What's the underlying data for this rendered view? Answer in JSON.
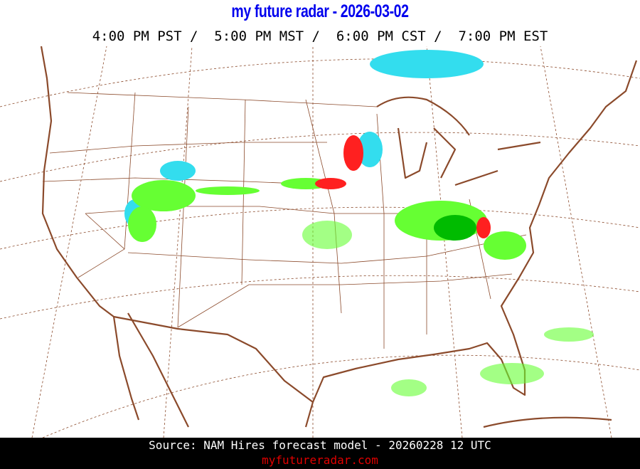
{
  "header": {
    "title": "my future radar - 2026-03-02",
    "times": "4:00 PM PST /  5:00 PM MST /  6:00 PM CST /  7:00 PM EST"
  },
  "map": {
    "region": "Continental United States",
    "colors": {
      "coastline": "#8b4a2b",
      "rain_light": "#66ff33",
      "rain_moderate": "#00bb00",
      "snow": "#33ddee",
      "mix": "#ff2020"
    }
  },
  "footer": {
    "source": "Source: NAM Hires forecast model - 20260228 12 UTC",
    "site": "myfutureradar.com"
  }
}
